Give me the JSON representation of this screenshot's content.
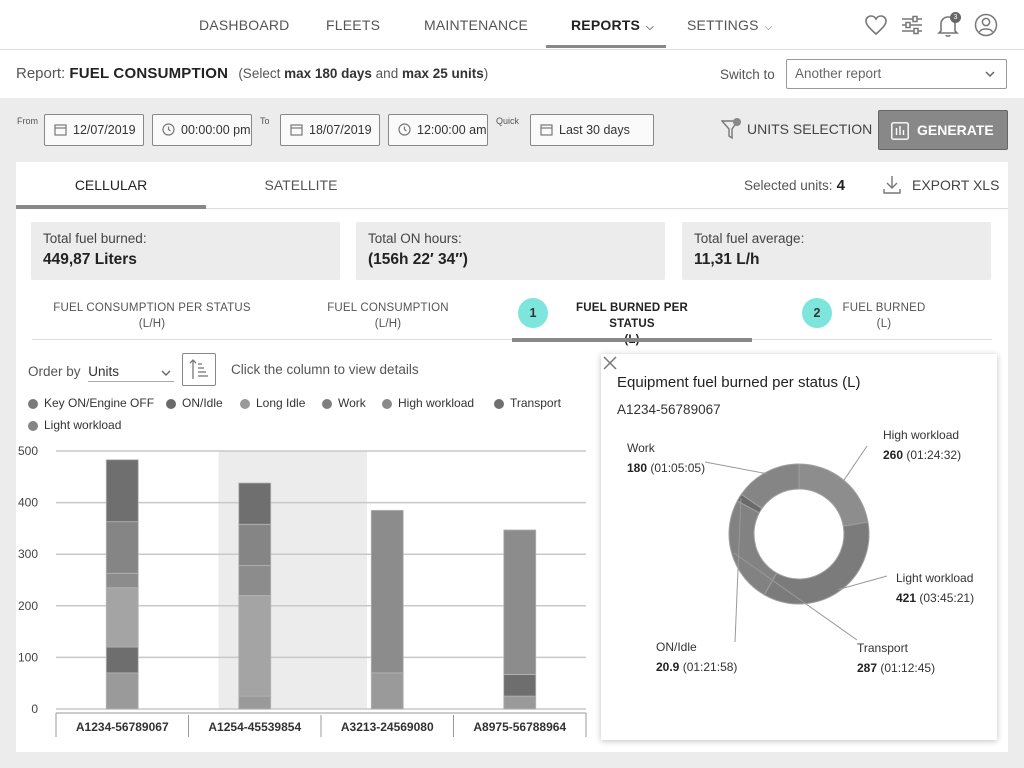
{
  "nav": {
    "items": [
      {
        "label": "DASHBOARD"
      },
      {
        "label": "FLEETS"
      },
      {
        "label": "MAINTENANCE"
      },
      {
        "label": "REPORTS"
      },
      {
        "label": "SETTINGS"
      }
    ],
    "notification_count": "3",
    "icons": [
      "heart-icon",
      "sliders-icon",
      "bell-icon",
      "user-icon"
    ]
  },
  "report": {
    "label": "Report:",
    "name": "FUEL CONSUMPTION",
    "note_pre": "(Select ",
    "note_days": "max 180 days",
    "note_mid": " and ",
    "note_units": "max 25 units",
    "note_post": ")",
    "switch_label": "Switch to",
    "switch_value": "Another report"
  },
  "filters": {
    "from_label": "From",
    "from_date": "12/07/2019",
    "from_time": "00:00:00 pm",
    "to_label": "To",
    "to_date": "18/07/2019",
    "to_time": "12:00:00 am",
    "quick_label": "Quick",
    "quick_value": "Last 30 days",
    "units_selection": "UNITS SELECTION",
    "generate": "GENERATE"
  },
  "tabs": {
    "cellular": "CELLULAR",
    "satellite": "SATELLITE",
    "selected_units_label": "Selected units:",
    "selected_units_value": "4",
    "export": "EXPORT XLS"
  },
  "stats": {
    "fuel_burned_label": "Total fuel burned:",
    "fuel_burned_value": "449,87 Liters",
    "on_hours_label": "Total ON hours:",
    "on_hours_value": "(156h 22′ 34″)",
    "fuel_avg_label": "Total fuel average:",
    "fuel_avg_value": "11,31 L/h"
  },
  "subtabs": [
    {
      "line1": "FUEL CONSUMPTION PER STATUS",
      "line2": "(L/H)"
    },
    {
      "line1": "FUEL CONSUMPTION",
      "line2": "(L/H)"
    },
    {
      "step": "1",
      "line1": "FUEL BURNED PER STATUS",
      "line2": "(L)"
    },
    {
      "step": "2",
      "line1": "FUEL BURNED",
      "line2": "(L)"
    }
  ],
  "controls": {
    "order_by_label": "Order by",
    "order_by_value": "Units",
    "hint": "Click the column to view details"
  },
  "legend": [
    {
      "label": "Key ON/Engine OFF",
      "color": "#7a7a7a"
    },
    {
      "label": "ON/Idle",
      "color": "#6a6a6a"
    },
    {
      "label": "Long Idle",
      "color": "#9a9a9a"
    },
    {
      "label": "Work",
      "color": "#7f7f7f"
    },
    {
      "label": "High workload",
      "color": "#8a8a8a"
    },
    {
      "label": "Transport",
      "color": "#707070"
    },
    {
      "label": "Light workload",
      "color": "#858585"
    }
  ],
  "chart_data": {
    "type": "bar",
    "stacked": true,
    "categories": [
      "A1234-56789067",
      "A1254-45539854",
      "A3213-24569080",
      "A8975-56788964"
    ],
    "ylim": [
      0,
      500
    ],
    "yticks": [
      0,
      100,
      200,
      300,
      400,
      500
    ],
    "grid": true,
    "highlighted_category": "A1254-45539854",
    "series": [
      {
        "status": "Key ON/Engine OFF",
        "color": "#9a9a9a",
        "values": [
          70,
          25,
          70,
          25
        ]
      },
      {
        "status": "ON/Idle",
        "color": "#6e6e6e",
        "values": [
          50,
          0,
          0,
          42
        ]
      },
      {
        "status": "Long Idle",
        "color": "#a4a4a4",
        "values": [
          115,
          195,
          0,
          0
        ]
      },
      {
        "status": "Work",
        "color": "#8c8c8c",
        "values": [
          28,
          58,
          315,
          280
        ]
      },
      {
        "status": "High workload",
        "color": "#858585",
        "values": [
          100,
          80,
          0,
          0
        ]
      },
      {
        "status": "Light workload",
        "color": "#6f6f6f",
        "values": [
          120,
          80,
          0,
          0
        ]
      }
    ]
  },
  "detail": {
    "title": "Equipment fuel burned per status (L)",
    "unit": "A1234-56789067",
    "slices": [
      {
        "label": "High workload",
        "value": "260",
        "time": "(01:24:32)",
        "amount": 260,
        "color": "#8d8d8d"
      },
      {
        "label": "Light workload",
        "value": "421",
        "time": "(03:45:21)",
        "amount": 421,
        "color": "#7b7b7b"
      },
      {
        "label": "Transport",
        "value": "287",
        "time": "(01:12:45)",
        "amount": 287,
        "color": "#828282"
      },
      {
        "label": "ON/Idle",
        "value": "20.9",
        "time": "(01:21:58)",
        "amount": 20.9,
        "color": "#6a6a6a"
      },
      {
        "label": "Work",
        "value": "180",
        "time": "(01:05:05)",
        "amount": 180,
        "color": "#858585"
      }
    ]
  }
}
